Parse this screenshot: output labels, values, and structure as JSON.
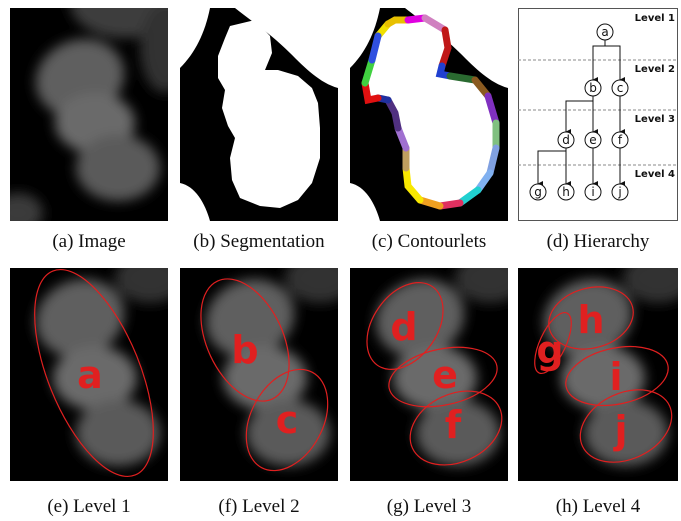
{
  "captions": {
    "a": "(a) Image",
    "b": "(b) Segmentation",
    "c": "(c) Contourlets",
    "d": "(d) Hierarchy",
    "e": "(e) Level 1",
    "f": "(f) Level 2",
    "g": "(g) Level 3",
    "h": "(h) Level 4"
  },
  "hierarchy": {
    "levels": [
      "Level 1",
      "Level 2",
      "Level 3",
      "Level 4"
    ],
    "nodes": [
      "a",
      "b",
      "c",
      "d",
      "e",
      "f",
      "g",
      "h",
      "i",
      "j"
    ]
  },
  "level_labels": {
    "l1": [
      "a"
    ],
    "l2": [
      "b",
      "c"
    ],
    "l3": [
      "d",
      "e",
      "f"
    ],
    "l4": [
      "g",
      "h",
      "i",
      "j"
    ]
  },
  "colors": {
    "ellipse": "#e02020",
    "label": "#e02020"
  }
}
